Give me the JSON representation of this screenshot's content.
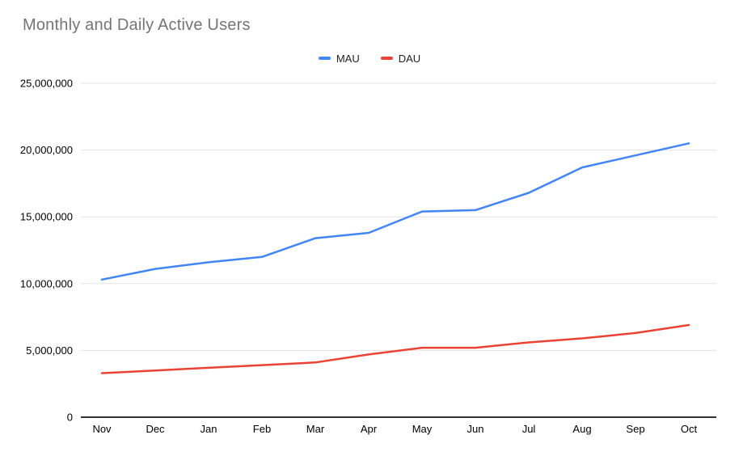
{
  "chart_data": {
    "type": "line",
    "title": "Monthly and Daily Active Users",
    "xlabel": "",
    "ylabel": "",
    "categories": [
      "Nov",
      "Dec",
      "Jan",
      "Feb",
      "Mar",
      "Apr",
      "May",
      "Jun",
      "Jul",
      "Aug",
      "Sep",
      "Oct"
    ],
    "series": [
      {
        "name": "MAU",
        "color": "#4285f4",
        "values": [
          10300000,
          11100000,
          11600000,
          12000000,
          13400000,
          13800000,
          15400000,
          15500000,
          16800000,
          18700000,
          19600000,
          20500000
        ]
      },
      {
        "name": "DAU",
        "color": "#ea4335",
        "values": [
          3300000,
          3500000,
          3700000,
          3900000,
          4100000,
          4700000,
          5200000,
          5200000,
          5600000,
          5900000,
          6300000,
          6900000
        ]
      }
    ],
    "ylim": [
      0,
      25000000
    ],
    "yticks": [
      0,
      5000000,
      10000000,
      15000000,
      20000000,
      25000000
    ],
    "ytick_labels": [
      "0",
      "5,000,000",
      "10,000,000",
      "15,000,000",
      "20,000,000",
      "25,000,000"
    ],
    "grid": true,
    "legend_position": "top-center"
  },
  "colors": {
    "title_text": "#757575",
    "axis_text": "#000000",
    "gridline": "#e3e3e3",
    "axis_line": "#333333",
    "background": "#ffffff"
  }
}
